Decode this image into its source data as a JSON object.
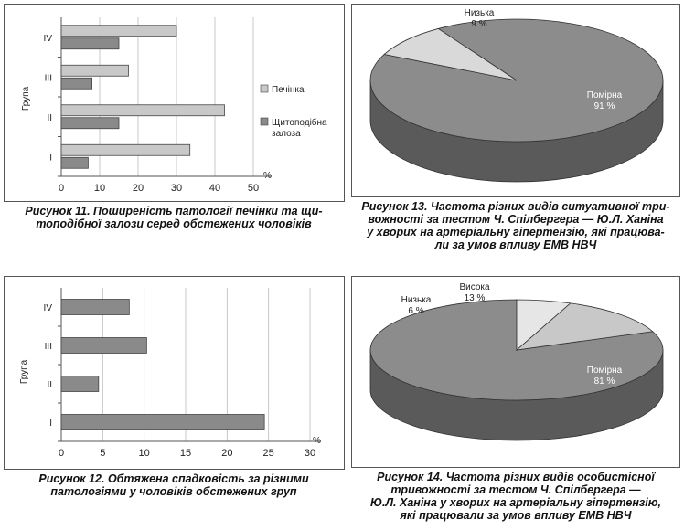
{
  "chart_data": [
    {
      "id": "fig11",
      "type": "bar",
      "orientation": "horizontal",
      "caption": "Рисунок 11. Поширеність патології печінки та щитоподібної залози серед обстежених чоловіків",
      "caption_lines": [
        "Рисунок 11. Поширеність патології печінки та щи-",
        "топодібної залози серед обстежених чоловіків"
      ],
      "ylabel": "Група",
      "xlabel": "%",
      "categories": [
        "IV",
        "III",
        "II",
        "I"
      ],
      "series": [
        {
          "name": "Печінка",
          "values": [
            30,
            17.5,
            42.5,
            33.5
          ],
          "color": "#c8c8c8"
        },
        {
          "name": "Щитоподібна залоза",
          "name_lines": [
            "Щитоподібна",
            "залоза"
          ],
          "values": [
            15,
            8,
            15,
            7
          ],
          "color": "#8a8a8a"
        }
      ],
      "xlim": [
        0,
        50
      ],
      "xticks": [
        0,
        10,
        20,
        30,
        40,
        50
      ],
      "grid": true,
      "legend_position": "right"
    },
    {
      "id": "fig12",
      "type": "bar",
      "orientation": "horizontal",
      "caption": "Рисунок 12. Обтяжена спадковість за різними патологіями у чоловіків обстежених груп",
      "caption_lines": [
        "Рисунок 12. Обтяжена спадковість за різними",
        "патологіями у чоловіків обстежених груп"
      ],
      "ylabel": "Група",
      "xlabel": "%",
      "categories": [
        "IV",
        "III",
        "II",
        "I"
      ],
      "series": [
        {
          "values": [
            8.2,
            10.3,
            4.5,
            24.5
          ],
          "color": "#8a8a8a"
        }
      ],
      "xlim": [
        0,
        30
      ],
      "xticks": [
        0,
        5,
        10,
        15,
        20,
        25,
        30
      ],
      "grid": true
    },
    {
      "id": "fig13",
      "type": "pie",
      "style": "3d",
      "caption": "Рисунок 13. Частота різних видів ситуативної тривожності за тестом Ч. Спілбергера — Ю.Л. Ханіна у хворих на артеріальну гіпертензію, які працювали за умов впливу ЕМВ НВЧ",
      "caption_lines": [
        "Рисунок 13. Частота різних видів ситуативної три-",
        "вожності за тестом Ч. Спілбергера — Ю.Л. Ханіна",
        "у хворих на артеріальну гіпертензію, які працюва-",
        "ли за умов впливу ЕМВ НВЧ"
      ],
      "slices": [
        {
          "label": "Помірна",
          "value": 91,
          "value_text": "91 %",
          "color": "#8c8c8c"
        },
        {
          "label": "Низька",
          "value": 9,
          "value_text": "9 %",
          "color": "#d9d9d9"
        }
      ]
    },
    {
      "id": "fig14",
      "type": "pie",
      "style": "3d",
      "caption": "Рисунок 14. Частота різних видів особистісної тривожності за тестом Ч. Спілбергера — Ю.Л. Ханіна у хворих на артеріальну гіпертензію, які працювали за умов впливу ЕМВ НВЧ",
      "caption_lines": [
        "Рисунок 14. Частота різних видів особистісної",
        "тривожності за тестом Ч. Спілбергера —",
        "Ю.Л. Ханіна у хворих на артеріальну гіпертензію,",
        "які працювали за умов впливу ЕМВ НВЧ"
      ],
      "slices": [
        {
          "label": "Помірна",
          "value": 81,
          "value_text": "81 %",
          "color": "#8c8c8c"
        },
        {
          "label": "Низька",
          "value": 6,
          "value_text": "6 %",
          "color": "#e6e6e6"
        },
        {
          "label": "Висока",
          "value": 13,
          "value_text": "13 %",
          "color": "#c8c8c8"
        }
      ]
    }
  ]
}
